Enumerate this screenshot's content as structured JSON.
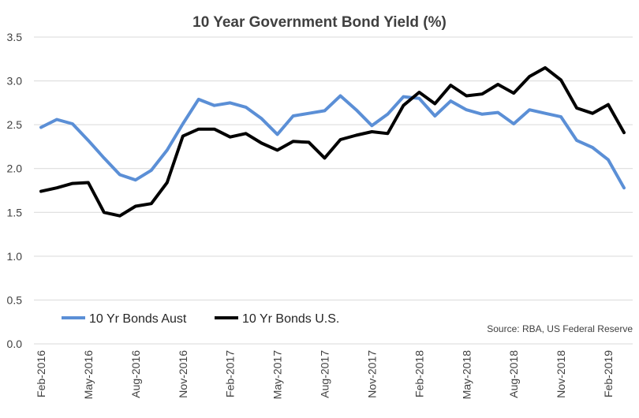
{
  "chart_data": {
    "type": "line",
    "title": "10 Year Government Bond Yield (%)",
    "xlabel": "",
    "ylabel": "",
    "ylim": [
      0,
      3.5
    ],
    "yticks": [
      "0.0",
      "0.5",
      "1.0",
      "1.5",
      "2.0",
      "2.5",
      "3.0",
      "3.5"
    ],
    "grid": true,
    "legend_position": "bottom-left",
    "source": "Source: RBA, US Federal Reserve",
    "x": [
      "Feb-2016",
      "Mar-2016",
      "Apr-2016",
      "May-2016",
      "Jun-2016",
      "Jul-2016",
      "Aug-2016",
      "Sep-2016",
      "Oct-2016",
      "Nov-2016",
      "Dec-2016",
      "Jan-2017",
      "Feb-2017",
      "Mar-2017",
      "Apr-2017",
      "May-2017",
      "Jun-2017",
      "Jul-2017",
      "Aug-2017",
      "Sep-2017",
      "Oct-2017",
      "Nov-2017",
      "Dec-2017",
      "Jan-2018",
      "Feb-2018",
      "Mar-2018",
      "Apr-2018",
      "May-2018",
      "Jun-2018",
      "Jul-2018",
      "Aug-2018",
      "Sep-2018",
      "Oct-2018",
      "Nov-2018",
      "Dec-2018",
      "Jan-2019",
      "Feb-2019",
      "Mar-2019"
    ],
    "x_tick_labels": [
      "Feb-2016",
      "May-2016",
      "Aug-2016",
      "Nov-2016",
      "Feb-2017",
      "May-2017",
      "Aug-2017",
      "Nov-2017",
      "Feb-2018",
      "May-2018",
      "Aug-2018",
      "Nov-2018",
      "Feb-2019"
    ],
    "series": [
      {
        "name": "10 Yr Bonds Aust",
        "color": "#5b8fd6",
        "values": [
          2.47,
          2.56,
          2.51,
          2.32,
          2.12,
          1.93,
          1.87,
          1.98,
          2.21,
          2.51,
          2.79,
          2.72,
          2.75,
          2.7,
          2.57,
          2.39,
          2.6,
          2.63,
          2.66,
          2.83,
          2.67,
          2.49,
          2.62,
          2.82,
          2.8,
          2.6,
          2.77,
          2.67,
          2.62,
          2.64,
          2.51,
          2.67,
          2.63,
          2.59,
          2.32,
          2.24,
          2.1,
          1.78
        ]
      },
      {
        "name": "10 Yr Bonds U.S.",
        "color": "#000000",
        "values": [
          1.74,
          1.78,
          1.83,
          1.84,
          1.5,
          1.46,
          1.57,
          1.6,
          1.84,
          2.37,
          2.45,
          2.45,
          2.36,
          2.4,
          2.29,
          2.21,
          2.31,
          2.3,
          2.12,
          2.33,
          2.38,
          2.42,
          2.4,
          2.72,
          2.87,
          2.74,
          2.95,
          2.83,
          2.85,
          2.96,
          2.86,
          3.05,
          3.15,
          3.01,
          2.69,
          2.63,
          2.73,
          2.41
        ]
      }
    ]
  }
}
